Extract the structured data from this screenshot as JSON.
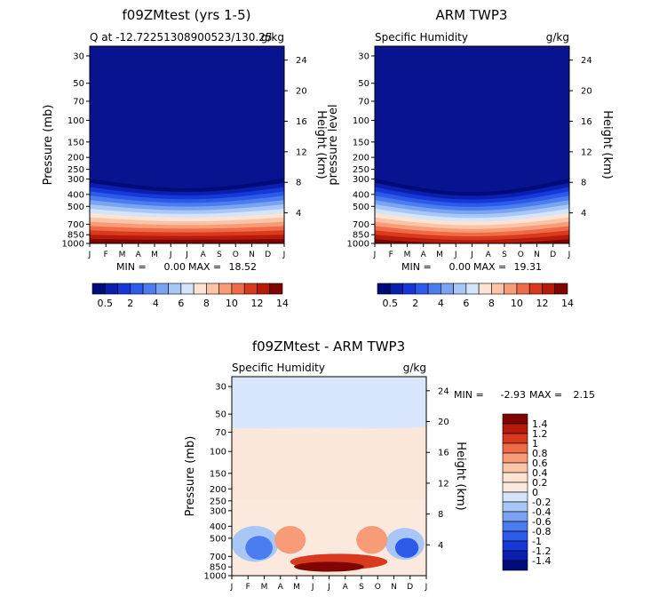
{
  "chart_data": [
    {
      "type": "heatmap",
      "title": "f09ZMtest (yrs 1-5)",
      "subtitle_left": "Q at -12.72251308900523/130.25",
      "subtitle_right": "g/kg",
      "ylabel_left": "Pressure (mb)",
      "ylabel_right": "Height (km)",
      "yticks_left": [
        "30",
        "50",
        "70",
        "100",
        "150",
        "200",
        "250",
        "300",
        "400",
        "500",
        "700",
        "850",
        "1000"
      ],
      "yticks_right": [
        "24",
        "20",
        "16",
        "12",
        "8",
        "4"
      ],
      "xticks": [
        "J",
        "F",
        "M",
        "A",
        "M",
        "J",
        "J",
        "A",
        "S",
        "O",
        "N",
        "D",
        "J"
      ],
      "min_label": "MIN =",
      "min_value": "0.00",
      "max_label": "MAX =",
      "max_value": "18.52",
      "colorbar": {
        "orientation": "horizontal",
        "tick_labels": [
          "0.5",
          "2",
          "4",
          "6",
          "8",
          "10",
          "12",
          "14"
        ],
        "colors": [
          "#000b7a",
          "#0a1fae",
          "#1638d8",
          "#2d5ae8",
          "#4c7df0",
          "#7aa3f2",
          "#a8c6f6",
          "#d4e4fa",
          "#fde3d2",
          "#fcc4a6",
          "#f89c78",
          "#ef6a47",
          "#d9391f",
          "#b81a0a",
          "#7e0502"
        ]
      }
    },
    {
      "type": "heatmap",
      "title": "ARM TWP3",
      "subtitle_left": "Specific Humidity",
      "subtitle_right": "g/kg",
      "ylabel_left": "pressure level",
      "ylabel_right": "Height (km)",
      "yticks_left": [
        "30",
        "50",
        "70",
        "100",
        "150",
        "200",
        "250",
        "300",
        "400",
        "500",
        "700",
        "850",
        "1000"
      ],
      "yticks_right": [
        "24",
        "20",
        "16",
        "12",
        "8",
        "4"
      ],
      "xticks": [
        "J",
        "F",
        "M",
        "A",
        "M",
        "J",
        "J",
        "A",
        "S",
        "O",
        "N",
        "D",
        "J"
      ],
      "min_label": "MIN =",
      "min_value": "0.00",
      "max_label": "MAX =",
      "max_value": "19.31",
      "colorbar": {
        "orientation": "horizontal",
        "tick_labels": [
          "0.5",
          "2",
          "4",
          "6",
          "8",
          "10",
          "12",
          "14"
        ],
        "colors": [
          "#000b7a",
          "#0a1fae",
          "#1638d8",
          "#2d5ae8",
          "#4c7df0",
          "#7aa3f2",
          "#a8c6f6",
          "#d4e4fa",
          "#fde3d2",
          "#fcc4a6",
          "#f89c78",
          "#ef6a47",
          "#d9391f",
          "#b81a0a",
          "#7e0502"
        ]
      }
    },
    {
      "type": "heatmap",
      "title": "f09ZMtest - ARM TWP3",
      "subtitle_left": "Specific Humidity",
      "subtitle_right": "g/kg",
      "ylabel_left": "Pressure (mb)",
      "ylabel_right": "Height (km)",
      "yticks_left": [
        "30",
        "50",
        "70",
        "100",
        "150",
        "200",
        "250",
        "300",
        "400",
        "500",
        "700",
        "850",
        "1000"
      ],
      "yticks_right": [
        "24",
        "20",
        "16",
        "12",
        "8",
        "4"
      ],
      "xticks": [
        "J",
        "F",
        "M",
        "A",
        "M",
        "J",
        "J",
        "A",
        "S",
        "O",
        "N",
        "D",
        "J"
      ],
      "min_label": "MIN =",
      "min_value": "-2.93",
      "max_label": "MAX =",
      "max_value": "2.15",
      "colorbar": {
        "orientation": "vertical",
        "tick_labels": [
          "1.4",
          "1.2",
          "1",
          "0.8",
          "0.6",
          "0.4",
          "0.2",
          "0",
          "-0.2",
          "-0.4",
          "-0.6",
          "-0.8",
          "-1",
          "-1.2",
          "-1.4"
        ],
        "colors": [
          "#7e0502",
          "#b81a0a",
          "#d9391f",
          "#ef6a47",
          "#f89c78",
          "#fcc4a6",
          "#fde3d2",
          "#fbe9dd",
          "#d4e4fa",
          "#a8c6f6",
          "#7aa3f2",
          "#4c7df0",
          "#2d5ae8",
          "#1638d8",
          "#0a1fae",
          "#000b7a"
        ]
      }
    }
  ]
}
